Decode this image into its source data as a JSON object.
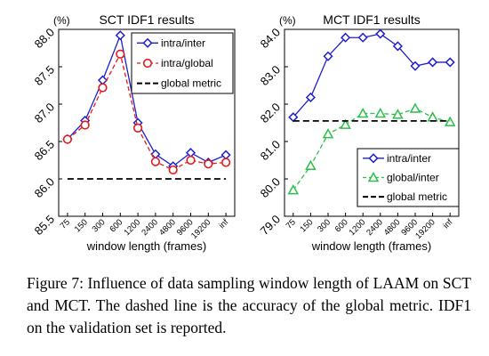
{
  "chart_data": [
    {
      "type": "line",
      "title": "SCT IDF1 results",
      "unit_label": "(%)",
      "xlabel": "window length (frames)",
      "ylabel": "",
      "categories": [
        "75",
        "150",
        "300",
        "600",
        "1200",
        "2400",
        "4800",
        "9600",
        "19200",
        "inf"
      ],
      "ylim": [
        85.5,
        88.0
      ],
      "yticks": [
        "85.5",
        "86.0",
        "86.5",
        "87.0",
        "87.5",
        "88.0"
      ],
      "grid": false,
      "legend_position": "top-right",
      "series": [
        {
          "name": "intra/inter",
          "values": [
            86.53,
            86.78,
            87.32,
            87.92,
            86.75,
            86.33,
            86.17,
            86.35,
            86.22,
            86.32
          ],
          "color": "#1f1fd0",
          "marker": "diamond",
          "dash": "solid"
        },
        {
          "name": "intra/global",
          "values": [
            86.53,
            86.72,
            87.22,
            87.67,
            86.68,
            86.23,
            86.12,
            86.25,
            86.2,
            86.22
          ],
          "color": "#e11b1b",
          "marker": "circle",
          "dash": "dashed"
        },
        {
          "name": "global metric",
          "values": [
            86.0,
            86.0,
            86.0,
            86.0,
            86.0,
            86.0,
            86.0,
            86.0,
            86.0,
            86.0
          ],
          "color": "#000000",
          "marker": "none",
          "dash": "dashed"
        }
      ]
    },
    {
      "type": "line",
      "title": "MCT IDF1 results",
      "unit_label": "(%)",
      "xlabel": "window length (frames)",
      "ylabel": "",
      "categories": [
        "75",
        "150",
        "300",
        "600",
        "1200",
        "2400",
        "4800",
        "9600",
        "19200",
        "inf"
      ],
      "ylim": [
        79.0,
        84.0
      ],
      "yticks": [
        "79.0",
        "80.0",
        "81.0",
        "82.0",
        "83.0",
        "84.0"
      ],
      "grid": false,
      "legend_position": "bottom-right",
      "series": [
        {
          "name": "intra/inter",
          "values": [
            81.65,
            82.18,
            83.28,
            83.78,
            83.78,
            83.88,
            83.55,
            83.02,
            83.12,
            83.12
          ],
          "color": "#1f1fd0",
          "marker": "diamond",
          "dash": "solid"
        },
        {
          "name": "global/inter",
          "values": [
            79.7,
            80.35,
            81.2,
            81.45,
            81.75,
            81.75,
            81.72,
            81.88,
            81.65,
            81.52
          ],
          "color": "#2bbf4b",
          "marker": "triangle",
          "dash": "dashed"
        },
        {
          "name": "global metric",
          "values": [
            81.55,
            81.55,
            81.55,
            81.55,
            81.55,
            81.55,
            81.55,
            81.55,
            81.55,
            81.55
          ],
          "color": "#000000",
          "marker": "none",
          "dash": "dashed"
        }
      ]
    }
  ],
  "caption": "Figure 7:  Influence of data sampling window length of LAAM on SCT and MCT. The dashed line is the accuracy of the global metric. IDF1 on the validation set is reported."
}
